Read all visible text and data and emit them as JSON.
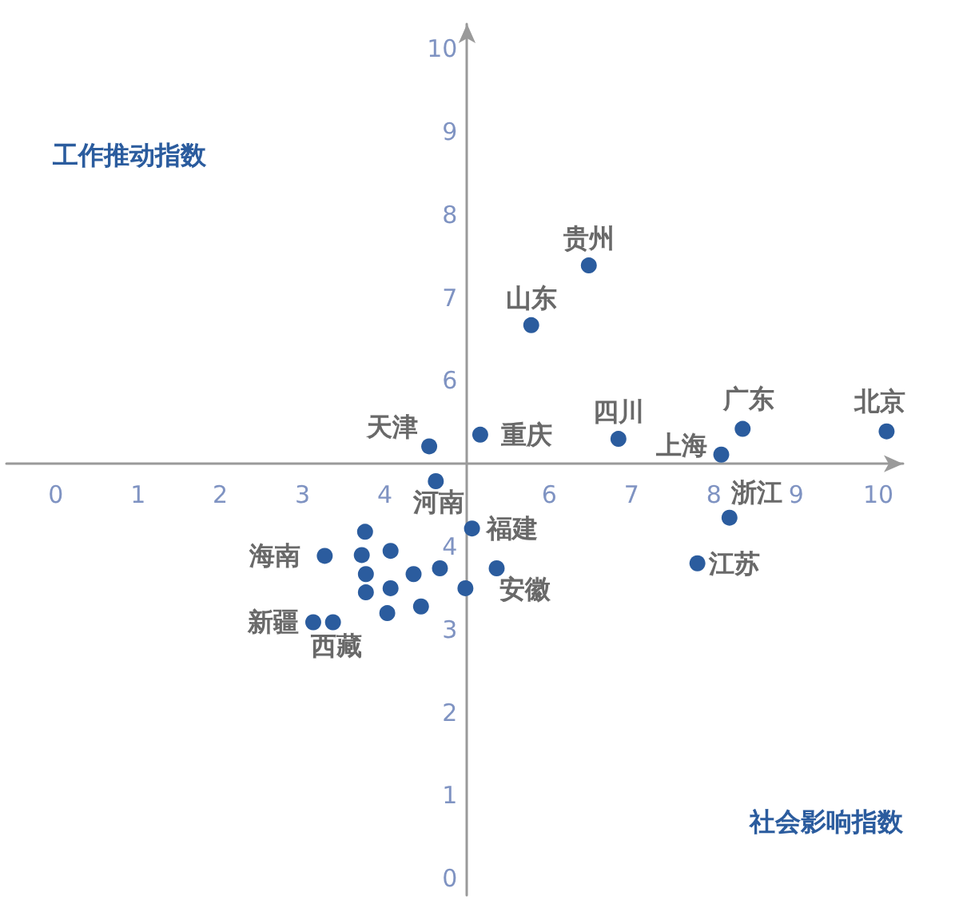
{
  "chart_data": {
    "type": "scatter",
    "xlabel": "社会影响指数",
    "ylabel": "工作推动指数",
    "x": [
      6.48,
      5.78,
      4.54,
      5.16,
      6.84,
      8.09,
      8.35,
      10.1,
      4.62,
      8.19,
      7.8,
      5.06,
      3.27,
      5.36,
      3.13,
      3.37,
      3.76,
      3.72,
      4.07,
      3.77,
      4.35,
      4.67,
      3.77,
      4.07,
      4.98,
      4.03,
      4.44
    ],
    "series": [
      {
        "color": "#2b5c9e",
        "values": [
          7.39,
          6.67,
          5.21,
          5.35,
          5.3,
          5.11,
          5.42,
          5.39,
          4.79,
          4.35,
          3.8,
          4.22,
          3.89,
          3.74,
          3.09,
          3.09,
          4.18,
          3.9,
          3.95,
          3.67,
          3.67,
          3.74,
          3.45,
          3.5,
          3.5,
          3.2,
          3.28
        ]
      }
    ],
    "xlim": [
      -0.6,
      10.3
    ],
    "ylim": [
      -0.2,
      10.3
    ],
    "xticks": [
      0,
      1,
      2,
      3,
      4,
      {
        "value": 5,
        "label": null
      },
      6,
      7,
      8,
      9,
      10
    ],
    "yticks": [
      0,
      1,
      2,
      3,
      4,
      {
        "value": 5,
        "label": null
      },
      6,
      7,
      8,
      9,
      10
    ],
    "marker": "circle",
    "grid": false,
    "annotations": [
      {
        "text": "贵州",
        "x": 6.48,
        "y": 7.39
      },
      {
        "text": "山东",
        "x": 5.78,
        "y": 6.67
      },
      {
        "text": "天津",
        "x": 4.54,
        "y": 5.21
      },
      {
        "text": "重庆",
        "x": 5.16,
        "y": 5.35
      },
      {
        "text": "四川",
        "x": 6.84,
        "y": 5.3
      },
      {
        "text": "上海",
        "x": 8.09,
        "y": 5.11
      },
      {
        "text": "广东",
        "x": 8.35,
        "y": 5.42
      },
      {
        "text": "北京",
        "x": 10.1,
        "y": 5.39
      },
      {
        "text": "河南",
        "x": 4.62,
        "y": 4.79
      },
      {
        "text": "浙江",
        "x": 8.19,
        "y": 4.35
      },
      {
        "text": "江苏",
        "x": 7.8,
        "y": 3.8
      },
      {
        "text": "福建",
        "x": 5.06,
        "y": 4.22
      },
      {
        "text": "海南",
        "x": 3.27,
        "y": 3.89
      },
      {
        "text": "安徽",
        "x": 5.36,
        "y": 3.74
      },
      {
        "text": "新疆",
        "x": 3.13,
        "y": 3.09
      },
      {
        "text": "西藏",
        "x": 3.37,
        "y": 3.09
      }
    ]
  }
}
